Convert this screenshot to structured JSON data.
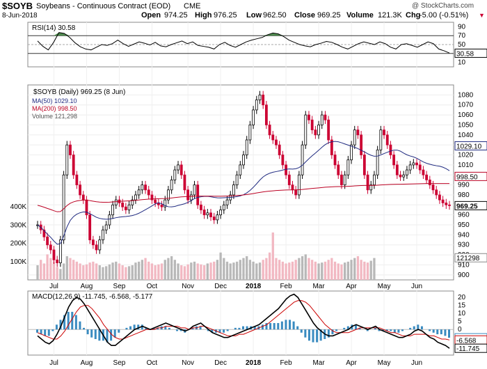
{
  "header": {
    "symbol": "$SOYB",
    "name": "Soybeans - Continuous Contract (EOD)",
    "exchange": "CME",
    "date": "8-Jun-2018",
    "open_label": "Open",
    "open": "974.25",
    "high_label": "High",
    "high": "976.25",
    "low_label": "Low",
    "low": "962.50",
    "close_label": "Close",
    "close": "969.25",
    "volume_label": "Volume",
    "volume": "121.3K",
    "chg_label": "Chg",
    "chg": "-5.00 (-0.51%)",
    "watermark": "@ StockCharts.com"
  },
  "colors": {
    "up": "#000000",
    "down": "#cc0033",
    "ma50": "#1f2a80",
    "ma200": "#bb0022",
    "vol_up": "#b8b8b8",
    "vol_down": "#f2b8c2",
    "macd_hist": "#3a8bc0",
    "rsi_fill": "#4e8a4e"
  },
  "chart_data": [
    {
      "type": "line",
      "panel": "rsi",
      "legend": "RSI(14) 30.58",
      "ylim": [
        0,
        100
      ],
      "y_ticks": [
        10,
        30,
        50,
        70,
        90
      ],
      "ref_lines": [
        30,
        50,
        70
      ],
      "last_value": "30.58",
      "values": [
        58,
        46,
        38,
        55,
        77,
        75,
        66,
        54,
        45,
        40,
        38,
        44,
        50,
        48,
        52,
        60,
        52,
        46,
        51,
        56,
        53,
        49,
        55,
        47,
        45,
        50,
        54,
        58,
        52,
        56,
        48,
        46,
        44,
        40,
        50,
        55,
        48,
        44,
        50,
        56,
        60,
        63,
        66,
        72,
        76,
        74,
        68,
        60,
        55,
        50,
        47,
        45,
        50,
        53,
        57,
        55,
        50,
        44,
        40,
        46,
        52,
        56,
        53,
        50,
        56,
        52,
        44,
        40,
        50,
        52,
        48,
        44,
        50,
        56,
        52,
        40,
        36,
        31
      ]
    },
    {
      "type": "candlestick",
      "panel": "price",
      "legend": "$SOYB (Daily) 969.25 (8 Jun)",
      "ylim": [
        895,
        1090
      ],
      "y_ticks": [
        900,
        910,
        920,
        930,
        940,
        950,
        960,
        970,
        980,
        990,
        1000,
        1010,
        1020,
        1030,
        1040,
        1050,
        1060,
        1070,
        1080
      ],
      "x_labels": [
        "Jul",
        "Aug",
        "Sep",
        "Oct",
        "Nov",
        "Dec",
        "2018",
        "Feb",
        "Mar",
        "Apr",
        "May",
        "Jun"
      ],
      "close": [
        950,
        945,
        938,
        930,
        925,
        915,
        912,
        935,
        1000,
        1030,
        1020,
        1000,
        990,
        980,
        975,
        960,
        935,
        930,
        925,
        935,
        945,
        950,
        960,
        970,
        975,
        972,
        968,
        965,
        970,
        975,
        980,
        985,
        990,
        985,
        980,
        975,
        972,
        970,
        968,
        975,
        985,
        995,
        1005,
        1010,
        1000,
        985,
        975,
        980,
        990,
        970,
        965,
        960,
        962,
        958,
        955,
        960,
        965,
        970,
        975,
        980,
        990,
        1000,
        1010,
        1020,
        1035,
        1050,
        1065,
        1075,
        1080,
        1070,
        1050,
        1040,
        1035,
        1030,
        1020,
        1010,
        1000,
        990,
        985,
        980,
        1000,
        1030,
        1060,
        1055,
        1045,
        1040,
        1050,
        1060,
        1055,
        1035,
        1020,
        1010,
        1000,
        990,
        1000,
        1015,
        1030,
        1045,
        1040,
        1020,
        1000,
        985,
        990,
        1000,
        1025,
        1045,
        1040,
        1030,
        1020,
        1010,
        1000,
        998,
        1000,
        1005,
        1010,
        1012,
        1010,
        1005,
        1000,
        995,
        990,
        985,
        980,
        975,
        972,
        970,
        969.25
      ],
      "series": [
        {
          "name": "MA(50) 1029.10",
          "last_value": "1029.10"
        },
        {
          "name": "MA(200) 998.50",
          "last_value": "998.50"
        },
        {
          "name": "Volume 121,298",
          "last_value": "121298"
        }
      ],
      "last_value": "969.25",
      "volume": {
        "y_ticks": [
          "100K",
          "200K",
          "300K",
          "400K"
        ],
        "values": [
          80,
          110,
          90,
          140,
          120,
          100,
          70,
          60,
          90,
          130,
          120,
          110,
          100,
          90,
          80,
          85,
          95,
          100,
          90,
          80,
          70,
          75,
          85,
          95,
          100,
          90,
          80,
          70,
          75,
          80,
          95,
          100,
          110,
          120,
          100,
          90,
          80,
          85,
          90,
          110,
          120,
          130,
          110,
          90,
          80,
          75,
          85,
          95,
          100,
          90,
          85,
          80,
          90,
          95,
          100,
          110,
          150,
          120,
          100,
          90,
          95,
          100,
          110,
          120,
          130,
          110,
          100,
          90,
          95,
          110,
          120,
          150,
          260,
          120,
          110,
          100,
          90,
          95,
          100,
          110,
          120,
          130,
          140,
          120,
          110,
          100,
          90,
          95,
          100,
          110,
          120,
          100,
          90,
          85,
          95,
          100,
          110,
          120,
          130,
          110,
          100,
          95,
          105,
          120
        ]
      }
    },
    {
      "type": "line",
      "panel": "macd",
      "legend": "MACD(12,26,9) -11.745, -6.568, -5.177",
      "ylim": [
        -16,
        24
      ],
      "y_ticks": [
        -10,
        -5,
        0,
        5,
        10,
        15,
        20
      ],
      "series": [
        {
          "name": "MACD",
          "last_value": "-11.745"
        },
        {
          "name": "Signal",
          "last_value": "-6.568"
        },
        {
          "name": "Histogram",
          "last_value": "-5.177"
        }
      ],
      "macd": [
        -4,
        -6,
        -8,
        -9,
        -7,
        -3,
        2,
        8,
        14,
        18,
        20,
        19,
        16,
        12,
        8,
        4,
        0,
        -4,
        -8,
        -10,
        -10,
        -8,
        -6,
        -4,
        -2,
        0,
        1,
        2,
        1,
        0,
        1,
        2,
        3,
        4,
        3,
        2,
        1,
        0,
        -1,
        0,
        2,
        3,
        4,
        2,
        0,
        -2,
        -3,
        -4,
        -5,
        -5,
        -4,
        -3,
        -2,
        -1,
        0,
        1,
        2,
        3,
        5,
        7,
        9,
        11,
        13,
        16,
        19,
        21,
        22,
        20,
        16,
        12,
        8,
        4,
        1,
        -1,
        -3,
        -4,
        -4,
        -3,
        -2,
        -1,
        0,
        2,
        3,
        2,
        1,
        0,
        1,
        2,
        0,
        -1,
        -2,
        -3,
        -4,
        -5,
        -5,
        -4,
        -3,
        -1,
        0,
        -1,
        -3,
        -5,
        -6,
        -8,
        -9,
        -10,
        -11.745
      ],
      "signal": [
        -2,
        -3,
        -4,
        -5,
        -6,
        -6,
        -4,
        -1,
        3,
        7,
        11,
        14,
        15,
        15,
        13,
        10,
        7,
        3,
        0,
        -3,
        -5,
        -6,
        -6,
        -5,
        -4,
        -3,
        -2,
        -1,
        0,
        0,
        0,
        1,
        1,
        2,
        2,
        2,
        2,
        1,
        1,
        0,
        1,
        1,
        2,
        2,
        1,
        0,
        -1,
        -2,
        -3,
        -4,
        -4,
        -4,
        -3,
        -3,
        -2,
        -1,
        0,
        1,
        2,
        3,
        5,
        7,
        9,
        11,
        13,
        15,
        17,
        18,
        18,
        17,
        15,
        12,
        9,
        6,
        3,
        1,
        -1,
        -2,
        -2,
        -2,
        -2,
        -1,
        0,
        1,
        1,
        1,
        1,
        1,
        1,
        0,
        -1,
        -2,
        -2,
        -3,
        -4,
        -4,
        -4,
        -3,
        -3,
        -3,
        -3,
        -4,
        -4,
        -5,
        -6,
        -6,
        -6.568
      ]
    }
  ]
}
